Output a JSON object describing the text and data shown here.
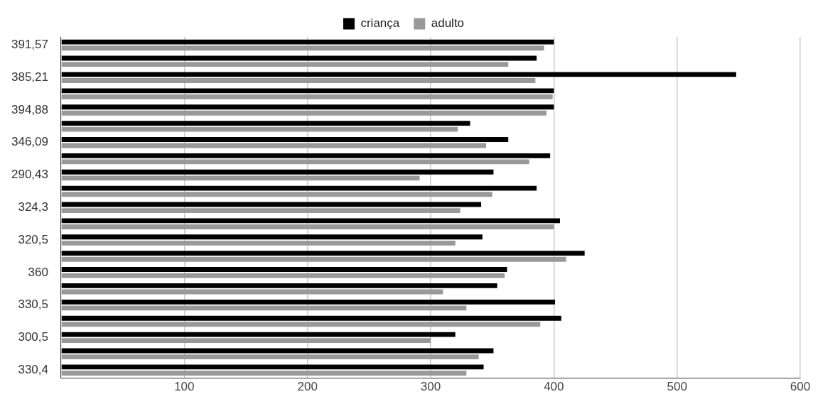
{
  "chart_data": {
    "type": "bar",
    "orientation": "horizontal",
    "categories": [
      "391,57",
      null,
      "385,21",
      null,
      "394,88",
      null,
      "346,09",
      null,
      "290,43",
      null,
      "324,3",
      null,
      "320,5",
      null,
      "360",
      null,
      "330,5",
      null,
      "300,5",
      null,
      "330,4"
    ],
    "series": [
      {
        "name": "criança",
        "color": "#000000",
        "values": [
          400,
          386,
          548,
          400,
          400,
          332,
          363,
          397,
          351,
          386,
          341,
          405,
          342,
          425,
          362,
          354,
          401,
          406,
          320,
          351,
          343
        ]
      },
      {
        "name": "adulto",
        "color": "#999999",
        "values": [
          392,
          363,
          385,
          399,
          394,
          322,
          345,
          380,
          291,
          350,
          324,
          400,
          320,
          410,
          360,
          310,
          329,
          389,
          300,
          339,
          329
        ]
      }
    ],
    "xlim": [
      0,
      600
    ],
    "xticks": [
      {
        "value": 0,
        "label": null
      },
      100,
      200,
      300,
      400,
      500,
      600
    ],
    "grid": "x",
    "legend": "top"
  }
}
